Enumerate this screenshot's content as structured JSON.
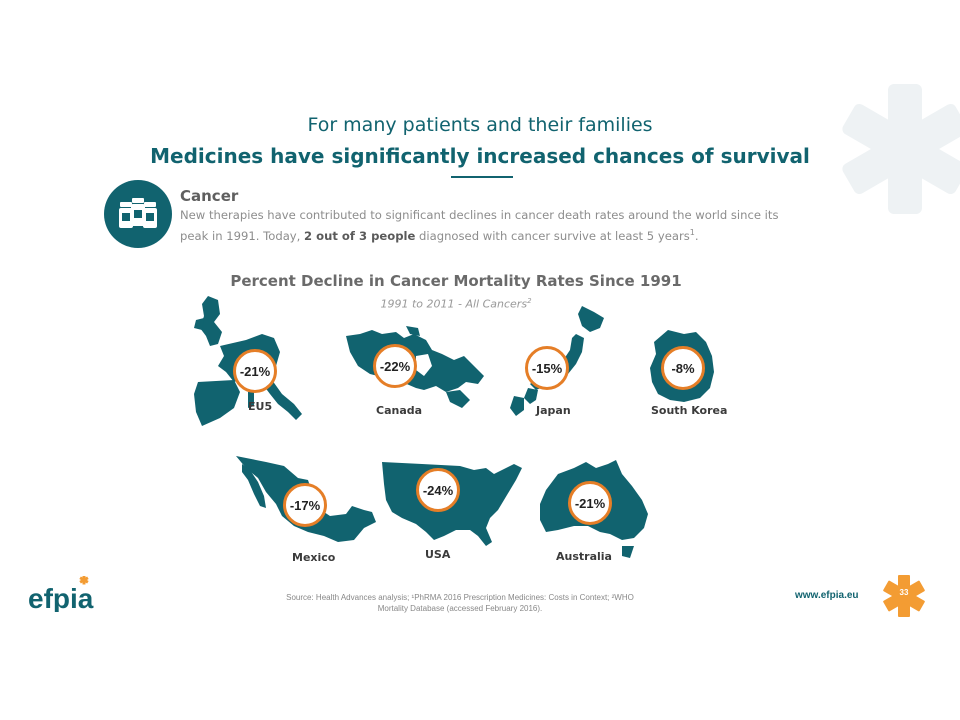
{
  "header": {
    "line1": "For many patients and their families",
    "line2": "Medicines have significantly increased chances of survival"
  },
  "cancer": {
    "title": "Cancer",
    "text_part1": "New therapies have contributed to significant declines in cancer death rates around the world since its peak in 1991. Today, ",
    "text_bold": "2 out of 3 people",
    "text_part2": " diagnosed with cancer survive at least 5 years",
    "text_sup": "1",
    "text_end": "."
  },
  "maps": {
    "title": "Percent Decline in Cancer Mortality Rates Since 1991",
    "subtitle": "1991 to 2011 - All Cancers",
    "subtitle_sup": "2",
    "regions": [
      {
        "name": "EU5",
        "value": "-21%"
      },
      {
        "name": "Canada",
        "value": "-22%"
      },
      {
        "name": "Japan",
        "value": "-15%"
      },
      {
        "name": "South Korea",
        "value": "-8%"
      },
      {
        "name": "Mexico",
        "value": "-17%"
      },
      {
        "name": "USA",
        "value": "-24%"
      },
      {
        "name": "Australia",
        "value": "-21%"
      }
    ]
  },
  "footer": {
    "logo_text": "efpia",
    "source_line1": "Source: Health Advances analysis; ¹PhRMA 2016 Prescription Medicines: Costs in Context; ²WHO",
    "source_line2": "Mortality Database (accessed February 2016).",
    "website": "www.efpia.eu",
    "page_number": "33"
  },
  "colors": {
    "teal": "#11636f",
    "map": "#11636f",
    "orange": "#f39c33",
    "badge_border": "#e57e27"
  }
}
